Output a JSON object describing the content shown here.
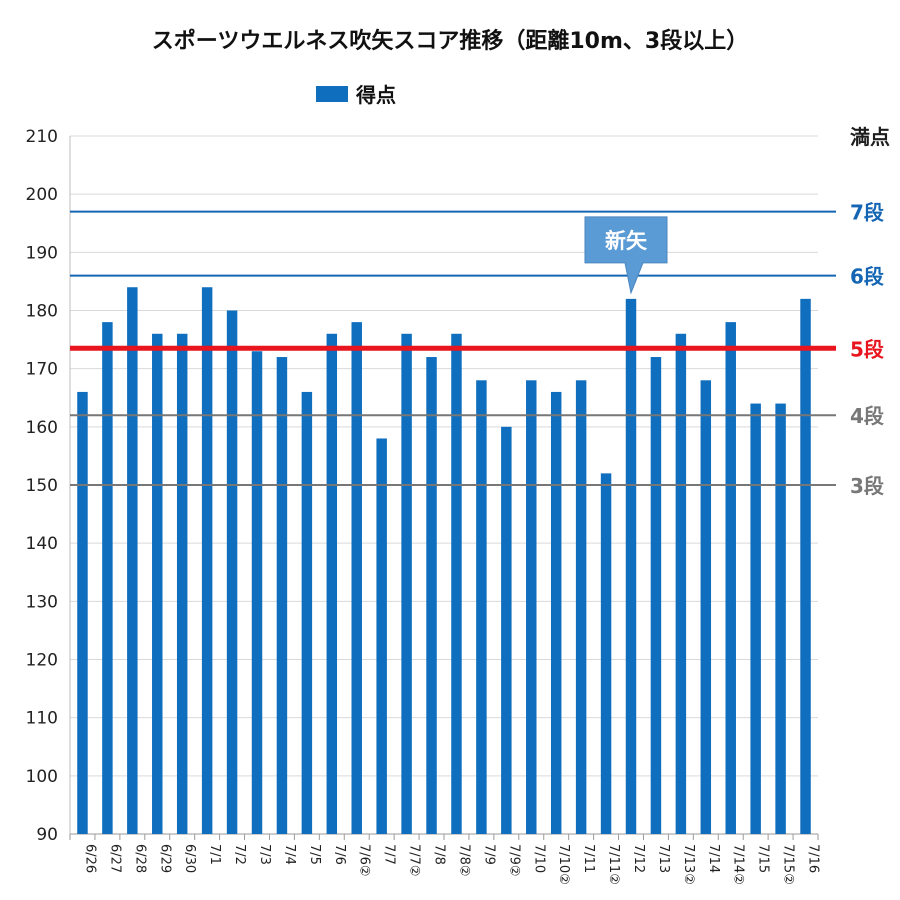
{
  "chart_data": {
    "type": "bar",
    "title": "スポーツウエルネス吹矢スコア推移（距離10m、3段以上）",
    "legend": [
      "得点"
    ],
    "bar_color": "#0F6EBE",
    "categories": [
      "6/26",
      "6/27",
      "6/28",
      "6/29",
      "6/30",
      "7/1",
      "7/2",
      "7/3",
      "7/4",
      "7/5",
      "7/6",
      "7/6②",
      "7/7",
      "7/7②",
      "7/8",
      "7/8②",
      "7/9",
      "7/9②",
      "7/10",
      "7/10②",
      "7/11",
      "7/11②",
      "7/12",
      "7/13",
      "7/13②",
      "7/14",
      "7/14②",
      "7/15",
      "7/15②",
      "7/16"
    ],
    "series": [
      {
        "name": "得点",
        "values": [
          166,
          178,
          184,
          176,
          176,
          184,
          180,
          173,
          172,
          166,
          176,
          178,
          158,
          176,
          172,
          176,
          168,
          160,
          168,
          166,
          168,
          152,
          182,
          172,
          176,
          168,
          178,
          164,
          164,
          182
        ]
      }
    ],
    "ylim": [
      90,
      210
    ],
    "yticks": [
      90,
      100,
      110,
      120,
      130,
      140,
      150,
      160,
      170,
      180,
      190,
      200,
      210
    ],
    "grid": "horizontal",
    "legend_position": "top-left",
    "reference_lines": [
      {
        "label": "満点",
        "value": 210,
        "color": "#1e1e1e",
        "show_line": false
      },
      {
        "label": "7段",
        "value": 197,
        "color": "#1466B4",
        "show_line": true
      },
      {
        "label": "6段",
        "value": 186,
        "color": "#1466B4",
        "show_line": true
      },
      {
        "label": "5段",
        "value": 173.5,
        "color": "#E8141E",
        "show_line": true
      },
      {
        "label": "4段",
        "value": 162,
        "color": "#777777",
        "show_line": true
      },
      {
        "label": "3段",
        "value": 150,
        "color": "#777777",
        "show_line": true
      }
    ],
    "annotation": {
      "text": "新矢",
      "category": "7/12",
      "color": "#5B9BD5"
    }
  }
}
